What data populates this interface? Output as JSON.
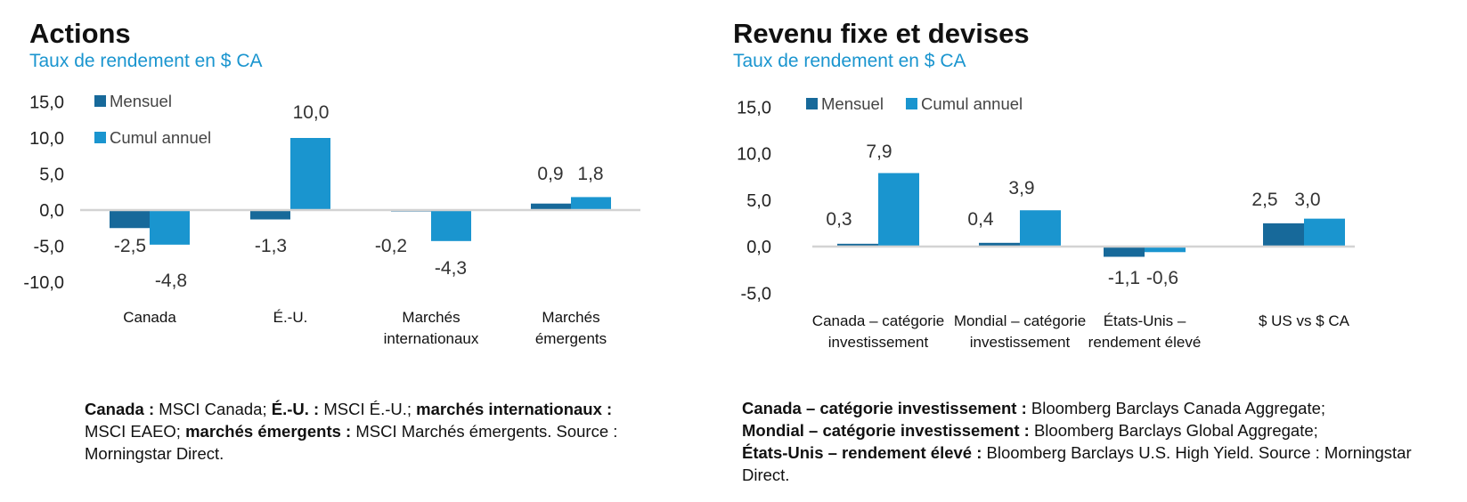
{
  "colors": {
    "mensuel": "#17699a",
    "cumul": "#1a95cf",
    "axis": "#d3d3d3",
    "subtitle": "#1a95cf",
    "text": "#222222"
  },
  "left": {
    "title": "Actions",
    "subtitle": "Taux de rendement en $ CA",
    "note": [
      {
        "t": "Canada : ",
        "b": true
      },
      {
        "t": "MSCI Canada; ",
        "b": false
      },
      {
        "t": "É.-U. : ",
        "b": true
      },
      {
        "t": "MSCI É.-U.; ",
        "b": false
      },
      {
        "t": "marchés internationaux : ",
        "b": true
      },
      {
        "t": "MSCI EAEO; ",
        "b": false
      },
      {
        "t": "marchés émergents : ",
        "b": true
      },
      {
        "t": "MSCI Marchés émergents. Source : Morningstar Direct.",
        "b": false
      }
    ]
  },
  "right": {
    "title": "Revenu fixe et devises",
    "subtitle": "Taux de rendement en $ CA",
    "note": [
      {
        "t": "Canada – catégorie investissement : ",
        "b": true
      },
      {
        "t": "Bloomberg Barclays Canada Aggregate;",
        "b": false,
        "br": true
      },
      {
        "t": "Mondial – catégorie investissement : ",
        "b": true
      },
      {
        "t": "Bloomberg Barclays Global Aggregate;",
        "b": false,
        "br": true
      },
      {
        "t": "États-Unis – rendement élevé : ",
        "b": true
      },
      {
        "t": "Bloomberg Barclays U.S. High Yield. Source : Morningstar Direct.",
        "b": false
      }
    ]
  },
  "chart_data": [
    {
      "type": "bar",
      "title": "Actions",
      "subtitle": "Taux de rendement en $ CA",
      "categories": [
        [
          "Canada"
        ],
        [
          "É.-U."
        ],
        [
          "Marchés",
          "internationaux"
        ],
        [
          "Marchés",
          "émergents"
        ]
      ],
      "series": [
        {
          "name": "Mensuel",
          "values": [
            -2.5,
            -1.3,
            -0.2,
            0.9
          ],
          "labels": [
            "-2,5",
            "-1,3",
            "-0,2",
            "0,9"
          ]
        },
        {
          "name": "Cumul annuel",
          "values": [
            -4.8,
            10.0,
            -4.3,
            1.8
          ],
          "labels": [
            "-4,8",
            "10,0",
            "-4,3",
            "1,8"
          ]
        }
      ],
      "yticks": [
        15,
        10,
        5,
        0,
        -5,
        -10
      ],
      "ytick_labels": [
        "15,0",
        "10,0",
        "5,0",
        "0,0",
        "-5,0",
        "-10,0"
      ],
      "ylim": [
        -10,
        15
      ],
      "legend": "top-left",
      "grid": false
    },
    {
      "type": "bar",
      "title": "Revenu fixe et devises",
      "subtitle": "Taux de rendement en $ CA",
      "categories": [
        [
          "Canada – catégorie",
          "investissement"
        ],
        [
          "Mondial – catégorie",
          "investissement"
        ],
        [
          "États-Unis –",
          "rendement élevé"
        ],
        [
          "$ US vs $ CA"
        ]
      ],
      "series": [
        {
          "name": "Mensuel",
          "values": [
            0.3,
            0.4,
            -1.1,
            2.5
          ],
          "labels": [
            "0,3",
            "0,4",
            "-1,1",
            "2,5"
          ]
        },
        {
          "name": "Cumul annuel",
          "values": [
            7.9,
            3.9,
            -0.6,
            3.0
          ],
          "labels": [
            "7,9",
            "3,9",
            "-0,6",
            "3,0"
          ]
        }
      ],
      "yticks": [
        15,
        10,
        5,
        0,
        -5
      ],
      "ytick_labels": [
        "15,0",
        "10,0",
        "5,0",
        "0,0",
        "-5,0"
      ],
      "ylim": [
        -5,
        15
      ],
      "legend": "top-left",
      "grid": false
    }
  ]
}
